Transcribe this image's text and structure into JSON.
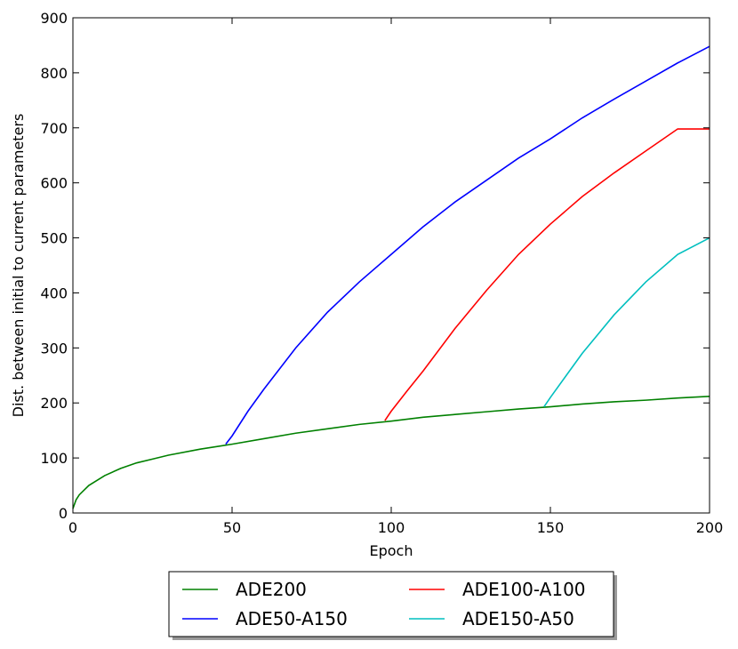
{
  "chart_data": {
    "type": "line",
    "title": "",
    "xlabel": "Epoch",
    "ylabel": "Dist. between initial to current parameters",
    "xlim": [
      0,
      200
    ],
    "ylim": [
      0,
      900
    ],
    "xticks": [
      0,
      50,
      100,
      150,
      200
    ],
    "yticks": [
      0,
      100,
      200,
      300,
      400,
      500,
      600,
      700,
      800,
      900
    ],
    "grid": false,
    "legend_position": "below",
    "series": [
      {
        "name": "ADE200",
        "color": "#008000",
        "x": [
          0,
          1,
          2,
          5,
          10,
          15,
          20,
          25,
          30,
          40,
          50,
          60,
          70,
          80,
          90,
          100,
          110,
          120,
          130,
          140,
          150,
          160,
          170,
          180,
          190,
          200
        ],
        "y": [
          8,
          24,
          33,
          50,
          68,
          81,
          91,
          98,
          105,
          116,
          125,
          135,
          145,
          153,
          161,
          167,
          174,
          179,
          184,
          189,
          193,
          198,
          202,
          205,
          209,
          212
        ]
      },
      {
        "name": "ADE50-A150",
        "color": "#0000ff",
        "x": [
          48,
          50,
          55,
          60,
          70,
          80,
          90,
          100,
          110,
          120,
          130,
          140,
          150,
          160,
          170,
          180,
          190,
          200
        ],
        "y": [
          125,
          140,
          185,
          225,
          300,
          365,
          420,
          470,
          520,
          565,
          605,
          645,
          680,
          718,
          752,
          785,
          818,
          848
        ]
      },
      {
        "name": "ADE100-A100",
        "color": "#ff0000",
        "x": [
          98,
          100,
          105,
          110,
          120,
          130,
          140,
          150,
          160,
          170,
          180,
          190,
          200
        ],
        "y": [
          168,
          185,
          222,
          258,
          335,
          405,
          470,
          525,
          575,
          618,
          658,
          698,
          698
        ]
      },
      {
        "name": "ADE150-A50",
        "color": "#00bfbf",
        "x": [
          148,
          150,
          155,
          160,
          170,
          180,
          190,
          200
        ],
        "y": [
          193,
          210,
          250,
          290,
          360,
          420,
          470,
          500
        ]
      }
    ],
    "legend_layout": [
      [
        "ADE200",
        "ADE100-A100"
      ],
      [
        "ADE50-A150",
        "ADE150-A50"
      ]
    ]
  }
}
